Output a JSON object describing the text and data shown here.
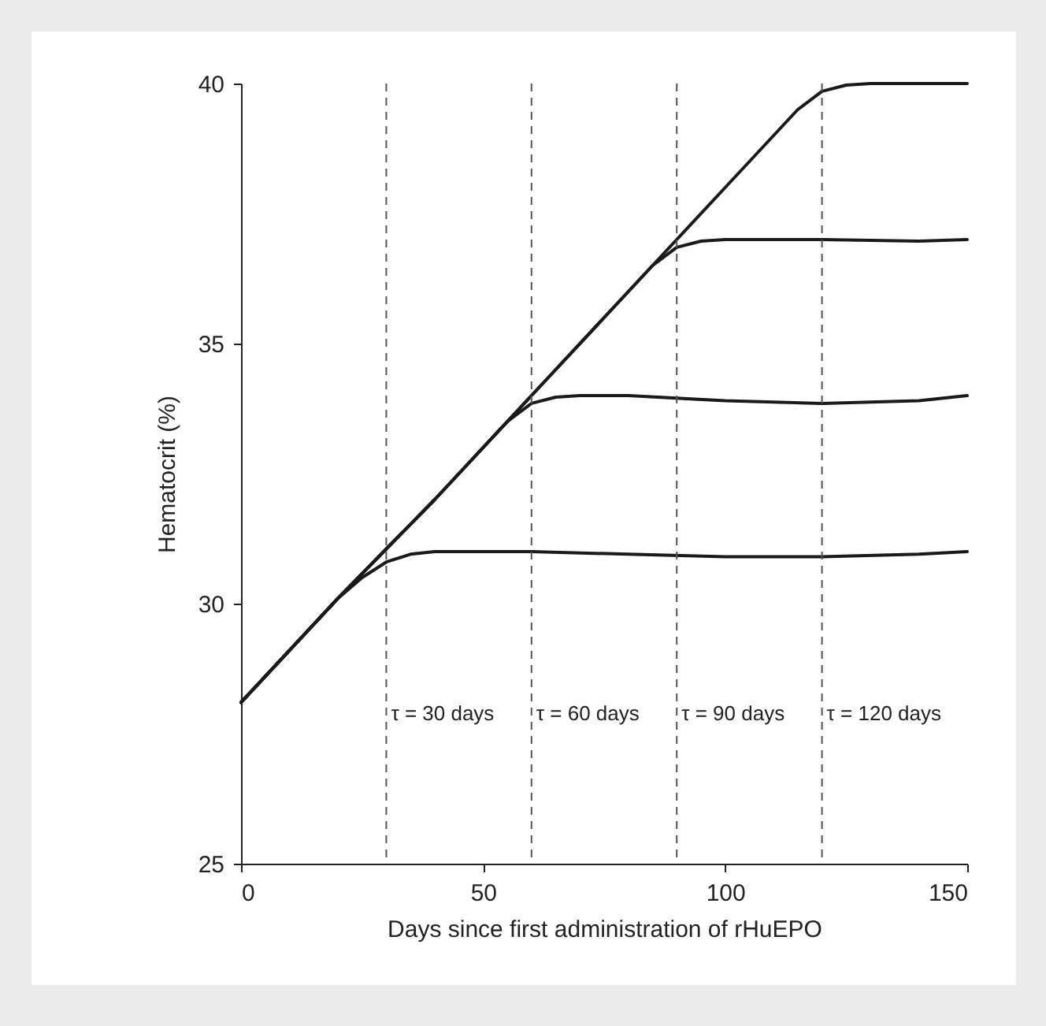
{
  "chart_data": {
    "type": "line",
    "xlabel": "Days since first administration of rHuEPO",
    "ylabel": "Hematocrit (%)",
    "xlim": [
      0,
      150
    ],
    "ylim": [
      25,
      40
    ],
    "xticks": [
      0,
      50,
      100,
      150
    ],
    "yticks": [
      25,
      30,
      35,
      40
    ],
    "grid": false,
    "marker": "none",
    "line_style": "solid",
    "series": [
      {
        "color": "#1a1a1a",
        "x": [
          0,
          10,
          20,
          25,
          30,
          35,
          40,
          60,
          80,
          100,
          120,
          140,
          150
        ],
        "values": [
          28.1,
          29.1,
          30.1,
          30.5,
          30.8,
          30.95,
          31.0,
          31.0,
          30.95,
          30.9,
          30.9,
          30.95,
          31.0
        ]
      },
      {
        "color": "#1a1a1a",
        "x": [
          0,
          20,
          40,
          50,
          55,
          60,
          65,
          70,
          80,
          100,
          120,
          140,
          150
        ],
        "values": [
          28.1,
          30.1,
          32.0,
          33.0,
          33.5,
          33.85,
          33.97,
          34.0,
          34.0,
          33.9,
          33.85,
          33.9,
          34.0
        ]
      },
      {
        "color": "#1a1a1a",
        "x": [
          0,
          20,
          40,
          60,
          80,
          85,
          90,
          95,
          100,
          110,
          120,
          140,
          150
        ],
        "values": [
          28.1,
          30.1,
          32.0,
          34.0,
          36.0,
          36.5,
          36.85,
          36.97,
          37.0,
          37.0,
          37.0,
          36.97,
          37.0
        ]
      },
      {
        "color": "#1a1a1a",
        "x": [
          0,
          20,
          40,
          60,
          80,
          100,
          110,
          115,
          120,
          125,
          130,
          140,
          150
        ],
        "values": [
          28.1,
          30.1,
          32.0,
          34.0,
          36.0,
          38.0,
          39.0,
          39.5,
          39.85,
          39.97,
          40.0,
          40.0,
          40.0
        ]
      }
    ],
    "ref_lines": [
      {
        "axis": "x",
        "value": 30,
        "label": "τ = 30 days",
        "color": "#555555",
        "line_style": "dashed"
      },
      {
        "axis": "x",
        "value": 60,
        "label": "τ = 60 days",
        "color": "#555555",
        "line_style": "dashed"
      },
      {
        "axis": "x",
        "value": 90,
        "label": "τ = 90 days",
        "color": "#555555",
        "line_style": "dashed"
      },
      {
        "axis": "x",
        "value": 120,
        "label": "τ = 120 days",
        "color": "#555555",
        "line_style": "dashed"
      }
    ]
  }
}
